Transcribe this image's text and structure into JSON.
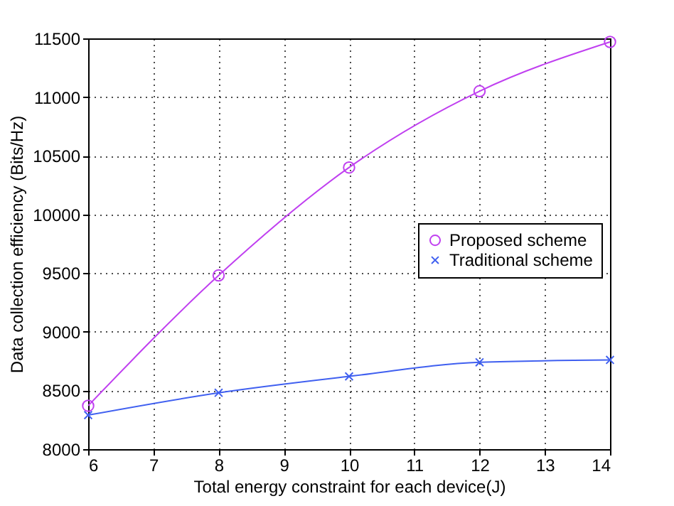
{
  "chart_data": {
    "type": "line",
    "xlabel": "Total energy constraint for each device(J)",
    "ylabel": "Data collection efficiency (Bits/Hz)",
    "x": [
      6,
      8,
      10,
      12,
      14
    ],
    "series": [
      {
        "name": "Proposed scheme",
        "color": "#c040f0",
        "marker": "circle",
        "values": [
          8370,
          9480,
          10400,
          11050,
          11470
        ]
      },
      {
        "name": "Traditional scheme",
        "color": "#4060f0",
        "marker": "cross",
        "values": [
          8290,
          8480,
          8620,
          8740,
          8760
        ]
      }
    ],
    "xlim": [
      6,
      14
    ],
    "xticks": [
      6,
      7,
      8,
      9,
      10,
      11,
      12,
      13,
      14
    ],
    "ylim": [
      8000,
      11500
    ],
    "yticks": [
      8000,
      8500,
      9000,
      9500,
      10000,
      10500,
      11000,
      11500
    ],
    "grid": true,
    "legend": "right",
    "line_style": "solid"
  }
}
